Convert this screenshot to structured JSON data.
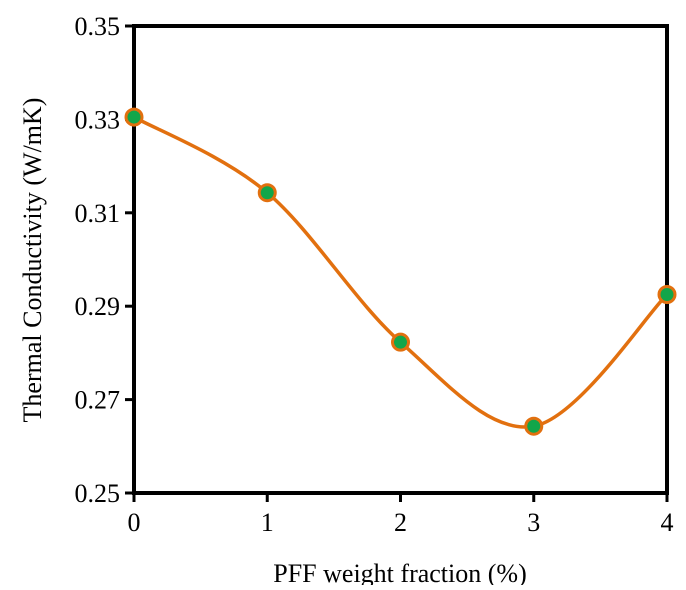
{
  "chart_data": {
    "type": "line",
    "title": "",
    "xlabel": "PFF weight fraction (%)",
    "ylabel": "Thermal Conductivity (W/mK)",
    "x": [
      0,
      1,
      2,
      3,
      4
    ],
    "series": [
      {
        "values": [
          0.3305,
          0.3143,
          0.2823,
          0.2643,
          0.2925
        ]
      }
    ],
    "xlim": [
      0,
      4
    ],
    "ylim": [
      0.25,
      0.35
    ],
    "x_ticks": [
      0,
      1,
      2,
      3,
      4
    ],
    "x_tick_labels": [
      "0",
      "1",
      "2",
      "3",
      "4"
    ],
    "y_ticks": [
      0.25,
      0.27,
      0.29,
      0.31,
      0.33,
      0.35
    ],
    "y_tick_labels": [
      "0.25",
      "0.27",
      "0.29",
      "0.31",
      "0.33",
      "0.35"
    ],
    "grid": false,
    "legend": "none",
    "line_style": "smoothed",
    "colors": {
      "line": "#E2700F",
      "marker_fill": "#12A64A",
      "marker_edge": "#E2700F",
      "axis": "#000000"
    }
  }
}
